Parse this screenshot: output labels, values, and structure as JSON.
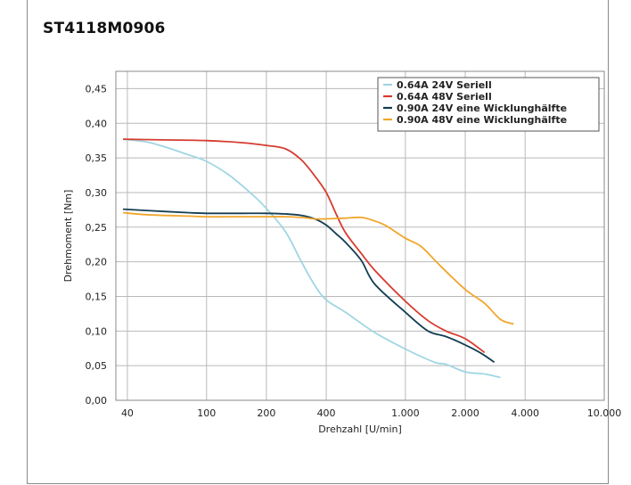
{
  "chart_data": {
    "type": "line",
    "title": "ST4118M0906",
    "xlabel": "Drehzahl [U/min]",
    "ylabel": "Drehmoment [Nm]",
    "xscale": "log",
    "xlim": [
      35,
      10000
    ],
    "ylim": [
      0,
      0.475
    ],
    "xticks": [
      {
        "value": 40,
        "label": "40"
      },
      {
        "value": 100,
        "label": "100"
      },
      {
        "value": 200,
        "label": "200"
      },
      {
        "value": 400,
        "label": "400"
      },
      {
        "value": 1000,
        "label": "1.000"
      },
      {
        "value": 2000,
        "label": "2.000"
      },
      {
        "value": 4000,
        "label": "4.000"
      },
      {
        "value": 10000,
        "label": "10.000"
      }
    ],
    "yticks": [
      {
        "value": 0.0,
        "label": "0,00"
      },
      {
        "value": 0.05,
        "label": "0,05"
      },
      {
        "value": 0.1,
        "label": "0,10"
      },
      {
        "value": 0.15,
        "label": "0,15"
      },
      {
        "value": 0.2,
        "label": "0,20"
      },
      {
        "value": 0.25,
        "label": "0,25"
      },
      {
        "value": 0.3,
        "label": "0,30"
      },
      {
        "value": 0.35,
        "label": "0,35"
      },
      {
        "value": 0.4,
        "label": "0,40"
      },
      {
        "value": 0.45,
        "label": "0,45"
      }
    ],
    "grid": true,
    "legend_position": "top-right",
    "series": [
      {
        "name": "0.64A 24V Seriell",
        "color": "#9fd6e2",
        "x": [
          38,
          50,
          60,
          80,
          100,
          130,
          170,
          200,
          250,
          300,
          350,
          400,
          500,
          700,
          1000,
          1400,
          1600,
          2000,
          2500,
          3000
        ],
        "y": [
          0.377,
          0.373,
          0.367,
          0.355,
          0.345,
          0.325,
          0.297,
          0.277,
          0.243,
          0.2,
          0.166,
          0.145,
          0.127,
          0.098,
          0.074,
          0.055,
          0.052,
          0.041,
          0.038,
          0.033
        ]
      },
      {
        "name": "0.64A 48V Seriell",
        "color": "#d63c2f",
        "x": [
          38,
          60,
          100,
          150,
          200,
          250,
          300,
          350,
          400,
          450,
          500,
          600,
          700,
          1000,
          1300,
          1600,
          2000,
          2500
        ],
        "y": [
          0.377,
          0.376,
          0.375,
          0.372,
          0.368,
          0.363,
          0.347,
          0.324,
          0.3,
          0.268,
          0.242,
          0.212,
          0.188,
          0.143,
          0.115,
          0.1,
          0.089,
          0.069
        ]
      },
      {
        "name": "0.90A 24V eine Wicklunghälfte",
        "color": "#133e52",
        "x": [
          38,
          50,
          80,
          100,
          150,
          200,
          250,
          300,
          350,
          400,
          450,
          500,
          600,
          700,
          1000,
          1300,
          1600,
          2000,
          2400,
          2800
        ],
        "y": [
          0.276,
          0.274,
          0.271,
          0.27,
          0.27,
          0.27,
          0.269,
          0.267,
          0.262,
          0.253,
          0.24,
          0.228,
          0.202,
          0.168,
          0.127,
          0.1,
          0.092,
          0.08,
          0.068,
          0.055
        ]
      },
      {
        "name": "0.90A 48V eine Wicklunghälfte",
        "color": "#f1a62c",
        "x": [
          38,
          50,
          80,
          100,
          150,
          200,
          250,
          300,
          350,
          400,
          500,
          600,
          700,
          800,
          1000,
          1200,
          1500,
          2000,
          2500,
          3000,
          3500
        ],
        "y": [
          0.271,
          0.268,
          0.266,
          0.265,
          0.265,
          0.265,
          0.265,
          0.264,
          0.262,
          0.262,
          0.263,
          0.264,
          0.259,
          0.252,
          0.234,
          0.222,
          0.194,
          0.16,
          0.14,
          0.117,
          0.11
        ]
      }
    ]
  }
}
